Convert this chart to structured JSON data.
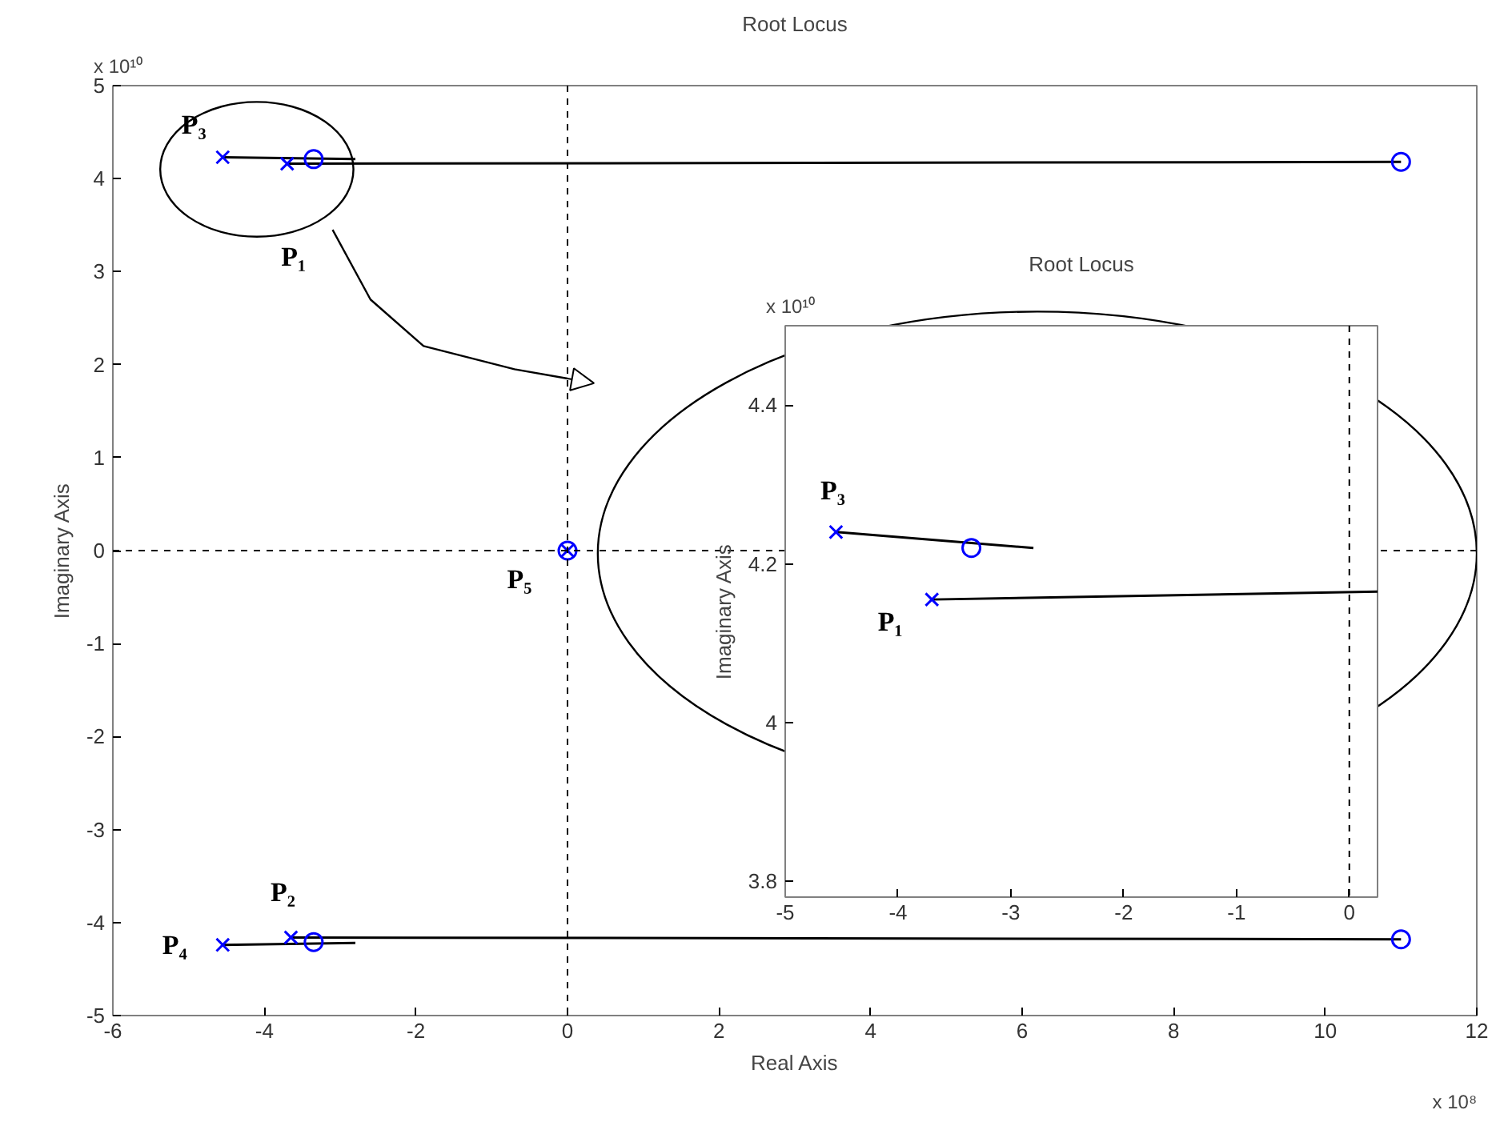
{
  "chart_data": [
    {
      "type": "line",
      "title": "Root Locus",
      "xlabel": "Real Axis",
      "ylabel": "Imaginary Axis",
      "xlim": [
        -6,
        12
      ],
      "ylim": [
        -5,
        5
      ],
      "xticks": [
        -6,
        -4,
        -2,
        0,
        2,
        4,
        6,
        8,
        10,
        12
      ],
      "yticks": [
        -5,
        -4,
        -3,
        -2,
        -1,
        0,
        1,
        2,
        3,
        4,
        5
      ],
      "grid": false,
      "series": [
        {
          "color": "#000000",
          "x": [
            -3.7,
            11.0
          ],
          "values": [
            4.16,
            4.18
          ]
        },
        {
          "color": "#000000",
          "x": [
            -4.55,
            -2.8
          ],
          "values": [
            4.23,
            4.21
          ]
        },
        {
          "color": "#000000",
          "x": [
            -3.65,
            11.0
          ],
          "values": [
            -4.16,
            -4.18
          ]
        },
        {
          "color": "#000000",
          "x": [
            -4.55,
            -2.8
          ],
          "values": [
            -4.24,
            -4.22
          ]
        },
        {
          "type": "scatter",
          "marker": "cross",
          "color": "#0000ff",
          "x": [
            -4.55,
            -3.7,
            -4.55,
            -3.65,
            0
          ],
          "values": [
            4.23,
            4.16,
            -4.24,
            -4.16,
            0
          ]
        },
        {
          "type": "scatter",
          "marker": "circle",
          "color": "#0000ff",
          "x": [
            -3.35,
            11.0,
            -3.35,
            11.0,
            0
          ],
          "values": [
            4.21,
            4.18,
            -4.21,
            -4.18,
            0
          ]
        }
      ],
      "ref_lines": [
        {
          "axis": "x",
          "value": 0,
          "line_style": "dashed",
          "color": "#000000"
        },
        {
          "axis": "y",
          "value": 0,
          "line_style": "dashed",
          "color": "#000000"
        }
      ],
      "annotations": [
        "x 10¹⁰",
        "x 10⁸",
        {
          "text": "P₃",
          "x": -4.55,
          "y": 4.23
        },
        {
          "text": "P₁",
          "x": -3.7,
          "y": 4.16
        },
        {
          "text": "P₂",
          "x": -3.65,
          "y": -4.16
        },
        {
          "text": "P₄",
          "x": -4.55,
          "y": -4.24
        },
        {
          "text": "P₅",
          "x": 0,
          "y": 0
        }
      ]
    },
    {
      "type": "line",
      "title": "Root Locus",
      "ylabel": "Imaginary Axis",
      "xlim": [
        -5,
        0.25
      ],
      "ylim": [
        3.78,
        4.5
      ],
      "xticks": [
        -5,
        -4,
        -3,
        -2,
        -1,
        0
      ],
      "yticks": [
        3.8,
        4,
        4.2,
        4.4
      ],
      "grid": false,
      "series": [
        {
          "color": "#000000",
          "x": [
            -3.7,
            0.25
          ],
          "values": [
            4.155,
            4.165
          ]
        },
        {
          "color": "#000000",
          "x": [
            -4.55,
            -2.8
          ],
          "values": [
            4.24,
            4.22
          ]
        },
        {
          "type": "scatter",
          "marker": "cross",
          "color": "#0000ff",
          "x": [
            -4.55,
            -3.7
          ],
          "values": [
            4.24,
            4.155
          ]
        },
        {
          "type": "scatter",
          "marker": "circle",
          "color": "#0000ff",
          "x": [
            -3.35
          ],
          "values": [
            4.22
          ]
        }
      ],
      "ref_lines": [
        {
          "axis": "x",
          "value": 0,
          "line_style": "dashed",
          "color": "#000000"
        }
      ],
      "annotations": [
        "x 10¹⁰",
        {
          "text": "P₃",
          "x": -4.55,
          "y": 4.24
        },
        {
          "text": "P₁",
          "x": -3.7,
          "y": 4.155
        }
      ]
    }
  ]
}
